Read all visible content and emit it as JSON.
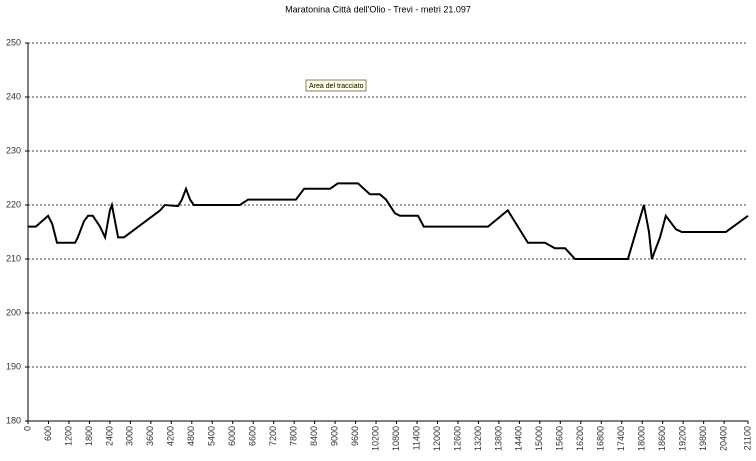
{
  "chart_data": {
    "type": "line",
    "title": "Maratonina Città dell'Olio - Trevi - metri 21.097",
    "annotation": "Area del tracciato",
    "x": [
      0,
      230,
      590,
      710,
      850,
      1000,
      1380,
      1460,
      1640,
      1760,
      1900,
      2110,
      2260,
      2400,
      2460,
      2550,
      2640,
      2810,
      3870,
      4010,
      4400,
      4510,
      4630,
      4750,
      4860,
      6210,
      6450,
      7850,
      7970,
      8090,
      8850,
      9080,
      9670,
      10020,
      10310,
      10490,
      10750,
      10900,
      11430,
      11600,
      11720,
      13480,
      14060,
      14650,
      15150,
      15440,
      15740,
      16030,
      17460,
      17580,
      18050,
      18200,
      18280,
      18520,
      18690,
      18990,
      19160,
      20450,
      21100
    ],
    "values": [
      216,
      216,
      218,
      216.5,
      213,
      213,
      213,
      214,
      217,
      218,
      218,
      216,
      214,
      219,
      220,
      217,
      214,
      214,
      219,
      220,
      219.8,
      221,
      223,
      221,
      220,
      220,
      221,
      221,
      222,
      223,
      223,
      224,
      224,
      222,
      222,
      221,
      218.5,
      218,
      218,
      216,
      216,
      216,
      219,
      213,
      213,
      212,
      212,
      210,
      210,
      210,
      220,
      215,
      210,
      214,
      218,
      215.5,
      215,
      215,
      218
    ],
    "color": "#000000",
    "xlim": [
      0,
      21100
    ],
    "xticks": [
      0,
      600,
      1200,
      1800,
      2400,
      3000,
      3600,
      4200,
      4800,
      5400,
      6000,
      6600,
      7200,
      7800,
      8400,
      9000,
      9600,
      10200,
      10800,
      11400,
      12000,
      12600,
      13200,
      13800,
      14400,
      15000,
      15600,
      16200,
      16800,
      17400,
      18000,
      18600,
      19200,
      19800,
      20400,
      21100
    ],
    "ylim": [
      180,
      250
    ],
    "yticks": [
      180,
      190,
      200,
      210,
      220,
      230,
      240,
      250
    ],
    "grid": true
  }
}
